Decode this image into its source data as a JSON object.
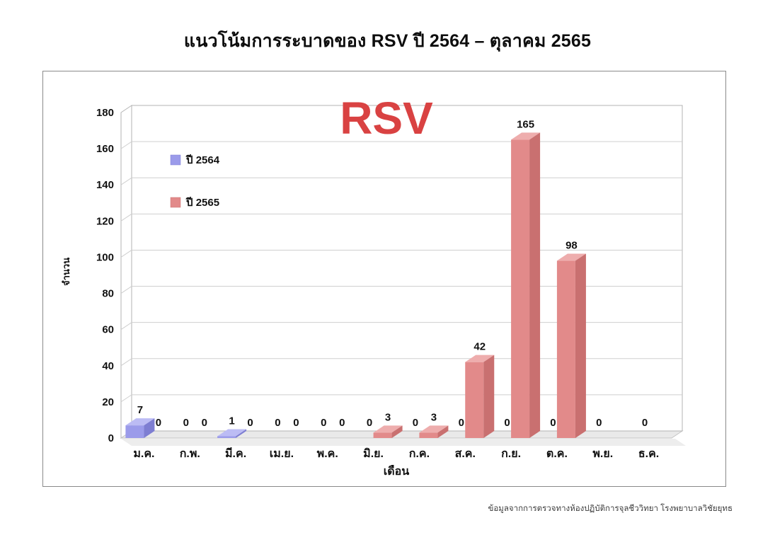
{
  "page": {
    "title": "แนวโน้มการระบาดของ RSV ปี 2564 – ตุลาคม 2565",
    "footer": "ข้อมูลจากการตรวจทางห้องปฏิบัติการจุลชีววิทยา โรงพยาบาลวิชัยยุทธ"
  },
  "colors": {
    "accent_red": "#d94242",
    "grid": "#cfcfcf",
    "wall_border": "#b3b3b3",
    "floor": "#e9e9e9",
    "floor_shadow": "#d8d8d8",
    "text": "#111111"
  },
  "chart_data": {
    "type": "bar",
    "style": "3d-clustered-column",
    "title": "แนวโน้มการระบาดของ RSV ปี 2564 – ตุลาคม 2565",
    "overlay_label": "RSV",
    "xlabel": "เดือน",
    "ylabel": "จำนวน",
    "ylim": [
      0,
      180
    ],
    "ytick_step": 20,
    "grid": true,
    "legend_position": "upper-left-inside",
    "categories": [
      "ม.ค.",
      "ก.พ.",
      "มี.ค.",
      "เม.ย.",
      "พ.ค.",
      "มิ.ย.",
      "ก.ค.",
      "ส.ค.",
      "ก.ย.",
      "ต.ค.",
      "พ.ย.",
      "ธ.ค."
    ],
    "series": [
      {
        "name": "ปี 2564",
        "color": "#9b9bea",
        "color_top": "#bcbcf4",
        "color_side": "#7e7ed2",
        "values": [
          7,
          0,
          1,
          0,
          0,
          0,
          0,
          0,
          0,
          0,
          0,
          0
        ]
      },
      {
        "name": "ปี 2565",
        "color": "#e28a8a",
        "color_top": "#eeadad",
        "color_side": "#c97070",
        "values": [
          0,
          0,
          0,
          0,
          0,
          3,
          3,
          42,
          165,
          98,
          null,
          null
        ]
      }
    ]
  }
}
